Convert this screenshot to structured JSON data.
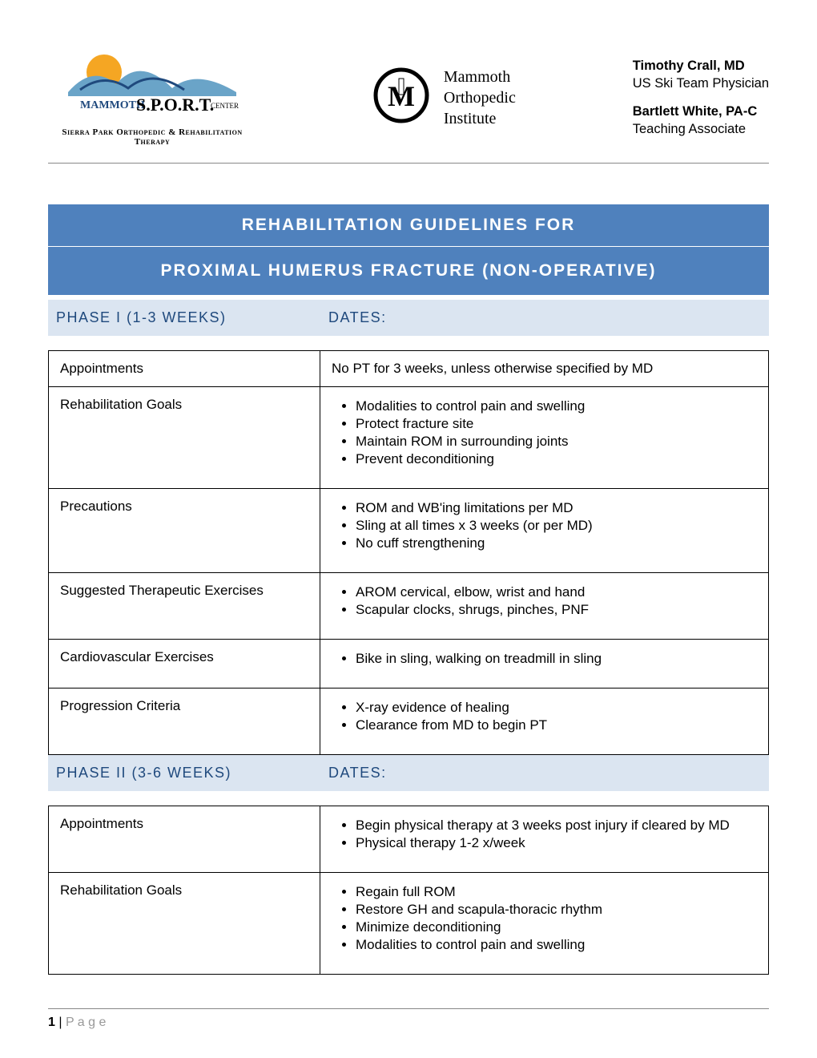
{
  "header": {
    "sport_logo_subtitle": "Sierra Park Orthopedic & Rehabilitation Therapy",
    "moi_text_line1": "Mammoth",
    "moi_text_line2": "Orthopedic",
    "moi_text_line3": "Institute",
    "staff": [
      {
        "name": "Timothy Crall, MD",
        "role": "US Ski Team Physician"
      },
      {
        "name": "Bartlett White, PA-C",
        "role": "Teaching Associate"
      }
    ]
  },
  "banner_line1": "REHABILITATION GUIDELINES FOR",
  "banner_line2": "PROXIMAL HUMERUS FRACTURE (NON-OPERATIVE)",
  "colors": {
    "banner_bg": "#4f81bd",
    "phase_bg": "#dbe5f1",
    "phase_text": "#1f497d"
  },
  "phase1": {
    "label": "PHASE I (1-3 WEEKS)",
    "dates_label": "DATES:",
    "rows": [
      {
        "label": "Appointments",
        "plain": "No PT for 3 weeks, unless otherwise specified by MD"
      },
      {
        "label": "Rehabilitation Goals",
        "bullets": [
          "Modalities to control pain and swelling",
          "Protect fracture site",
          "Maintain ROM in surrounding joints",
          "Prevent deconditioning"
        ]
      },
      {
        "label": "Precautions",
        "bullets": [
          "ROM and WB'ing limitations per MD",
          "Sling at all times x 3 weeks (or per MD)",
          "No cuff strengthening"
        ]
      },
      {
        "label": "Suggested Therapeutic Exercises",
        "bullets": [
          "AROM cervical, elbow, wrist and hand",
          "Scapular clocks, shrugs, pinches, PNF"
        ]
      },
      {
        "label": "Cardiovascular Exercises",
        "bullets": [
          "Bike in sling, walking on treadmill in sling"
        ]
      },
      {
        "label": "Progression Criteria",
        "bullets": [
          "X-ray evidence of healing",
          "Clearance from MD to begin PT"
        ]
      }
    ]
  },
  "phase2": {
    "label": "PHASE II (3-6 WEEKS)",
    "dates_label": "DATES:",
    "rows": [
      {
        "label": "Appointments",
        "bullets": [
          "Begin physical therapy at 3 weeks post injury if cleared by MD",
          "Physical therapy 1-2 x/week"
        ]
      },
      {
        "label": "Rehabilitation Goals",
        "bullets": [
          "Regain full ROM",
          "Restore GH and scapula-thoracic rhythm",
          "Minimize deconditioning",
          "Modalities to control pain and swelling"
        ]
      }
    ]
  },
  "footer": {
    "page_num": "1",
    "page_word": "P a g e"
  }
}
